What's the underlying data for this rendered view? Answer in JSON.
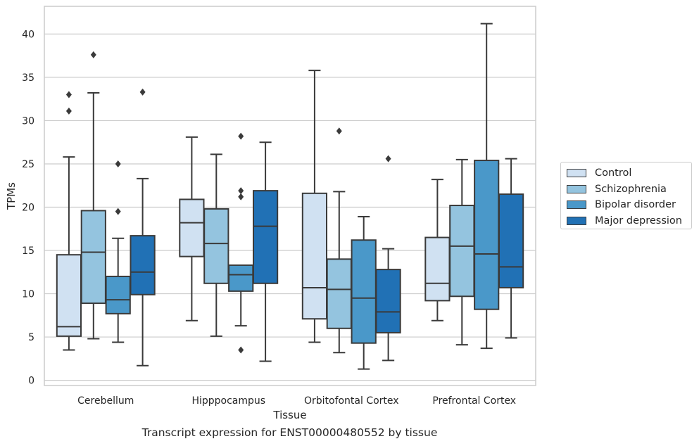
{
  "chart_data": {
    "type": "box",
    "caption": "Transcript expression for ENST00000480552 by tissue",
    "xlabel": "Tissue",
    "ylabel": "TPMs",
    "ylim": [
      -0.6,
      43.2
    ],
    "yticks": [
      0,
      5,
      10,
      15,
      20,
      25,
      30,
      35,
      40
    ],
    "grid": "horizontal",
    "legend_position": "right",
    "categories": [
      "Cerebellum",
      "Hipppocampus",
      "Orbitofontal Cortex",
      "Prefrontal Cortex"
    ],
    "series": [
      {
        "name": "Control",
        "color": "#d0e1f2",
        "boxes": [
          {
            "whisker_low": 3.5,
            "q1": 5.1,
            "median": 6.2,
            "q3": 14.5,
            "whisker_high": 25.8,
            "outliers": [
              31.1,
              33.0
            ]
          },
          {
            "whisker_low": 6.9,
            "q1": 14.3,
            "median": 18.2,
            "q3": 20.9,
            "whisker_high": 28.1,
            "outliers": []
          },
          {
            "whisker_low": 4.4,
            "q1": 7.1,
            "median": 10.7,
            "q3": 21.6,
            "whisker_high": 35.8,
            "outliers": []
          },
          {
            "whisker_low": 6.9,
            "q1": 9.2,
            "median": 11.2,
            "q3": 16.5,
            "whisker_high": 23.2,
            "outliers": []
          }
        ]
      },
      {
        "name": "Schizophrenia",
        "color": "#94c4df",
        "boxes": [
          {
            "whisker_low": 4.8,
            "q1": 8.9,
            "median": 14.8,
            "q3": 19.6,
            "whisker_high": 33.2,
            "outliers": [
              37.6
            ]
          },
          {
            "whisker_low": 5.1,
            "q1": 11.2,
            "median": 15.8,
            "q3": 19.8,
            "whisker_high": 26.1,
            "outliers": []
          },
          {
            "whisker_low": 3.2,
            "q1": 6.0,
            "median": 10.5,
            "q3": 14.0,
            "whisker_high": 21.8,
            "outliers": [
              28.8
            ]
          },
          {
            "whisker_low": 4.1,
            "q1": 9.7,
            "median": 15.5,
            "q3": 20.2,
            "whisker_high": 25.5,
            "outliers": []
          }
        ]
      },
      {
        "name": "Bipolar disorder",
        "color": "#4a98c9",
        "boxes": [
          {
            "whisker_low": 4.4,
            "q1": 7.7,
            "median": 9.3,
            "q3": 12.0,
            "whisker_high": 16.4,
            "outliers": [
              19.5,
              25.0
            ]
          },
          {
            "whisker_low": 6.3,
            "q1": 10.3,
            "median": 12.2,
            "q3": 13.3,
            "whisker_high": 13.3,
            "outliers": [
              3.5,
              21.2,
              21.9,
              28.2
            ]
          },
          {
            "whisker_low": 1.3,
            "q1": 4.3,
            "median": 9.5,
            "q3": 16.2,
            "whisker_high": 18.9,
            "outliers": []
          },
          {
            "whisker_low": 3.7,
            "q1": 8.2,
            "median": 14.6,
            "q3": 25.4,
            "whisker_high": 41.2,
            "outliers": []
          }
        ]
      },
      {
        "name": "Major depression",
        "color": "#2171b5",
        "boxes": [
          {
            "whisker_low": 1.7,
            "q1": 9.9,
            "median": 12.5,
            "q3": 16.7,
            "whisker_high": 23.3,
            "outliers": [
              33.3
            ]
          },
          {
            "whisker_low": 2.2,
            "q1": 11.2,
            "median": 17.8,
            "q3": 21.9,
            "whisker_high": 27.5,
            "outliers": []
          },
          {
            "whisker_low": 2.3,
            "q1": 5.5,
            "median": 7.9,
            "q3": 12.8,
            "whisker_high": 15.2,
            "outliers": [
              25.6
            ]
          },
          {
            "whisker_low": 4.9,
            "q1": 10.7,
            "median": 13.1,
            "q3": 21.5,
            "whisker_high": 25.6,
            "outliers": []
          }
        ]
      }
    ]
  }
}
